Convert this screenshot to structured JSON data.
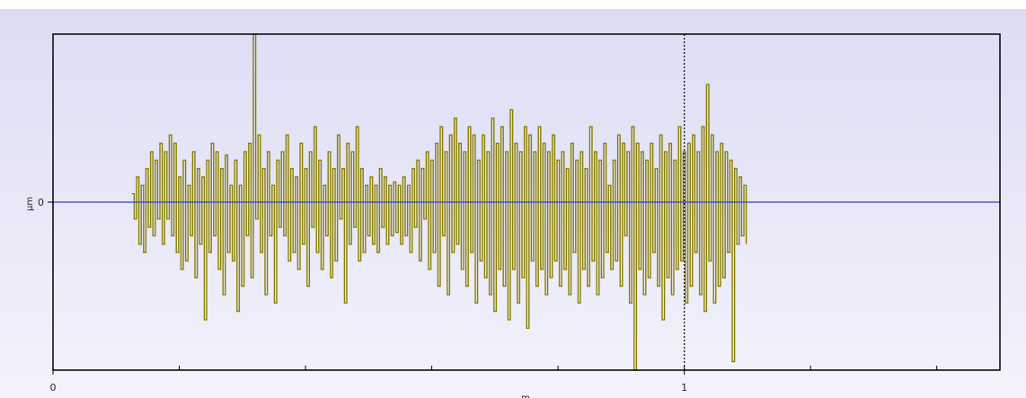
{
  "chart_data": {
    "type": "line",
    "title": "",
    "xlabel": "m",
    "ylabel": "µm",
    "x_ticks": [
      "0",
      "1"
    ],
    "y_ticks": [
      "0"
    ],
    "xlim": [
      0,
      1.5
    ],
    "ylim": [
      -1,
      1
    ],
    "grid": false,
    "cursor_x": 1,
    "baseline_y": 0,
    "colors": {
      "series": "#8a7f00",
      "baseline": "#3344bb",
      "cursor": "#000000",
      "background_top": "#dcdcf4",
      "background_bottom": "#f3f3fc",
      "frame": "#000000"
    },
    "series": [
      {
        "x_start": 0.125,
        "x_step": 0.0037,
        "values": [
          0.05,
          -0.1,
          0.15,
          -0.25,
          0.1,
          -0.3,
          0.2,
          -0.15,
          0.3,
          -0.2,
          0.25,
          -0.1,
          0.35,
          -0.25,
          0.3,
          -0.1,
          0.4,
          -0.2,
          0.35,
          -0.3,
          0.15,
          -0.4,
          0.25,
          -0.35,
          0.1,
          -0.2,
          0.3,
          -0.45,
          0.2,
          -0.25,
          0.15,
          -0.7,
          0.25,
          -0.3,
          0.35,
          -0.2,
          0.3,
          -0.4,
          0.2,
          -0.55,
          0.28,
          -0.3,
          0.1,
          -0.35,
          0.25,
          -0.65,
          0.1,
          -0.5,
          0.3,
          -0.2,
          0.35,
          -0.45,
          1.0,
          -0.1,
          0.4,
          -0.3,
          0.2,
          -0.55,
          0.3,
          -0.2,
          0.1,
          -0.6,
          0.25,
          -0.15,
          0.3,
          -0.2,
          0.4,
          -0.35,
          0.2,
          -0.3,
          0.15,
          -0.4,
          0.35,
          -0.25,
          0.2,
          -0.5,
          0.3,
          -0.15,
          0.45,
          -0.3,
          0.25,
          -0.4,
          0.1,
          -0.2,
          0.3,
          -0.45,
          0.2,
          -0.35,
          0.4,
          -0.1,
          0.2,
          -0.6,
          0.35,
          -0.25,
          0.3,
          -0.15,
          0.45,
          -0.35,
          0.2,
          -0.3,
          0.1,
          -0.2,
          0.15,
          -0.25,
          0.1,
          -0.3,
          0.2,
          -0.15,
          0.15,
          -0.25,
          0.1,
          -0.2,
          0.12,
          -0.18,
          0.1,
          -0.25,
          0.15,
          -0.2,
          0.1,
          -0.3,
          0.2,
          -0.15,
          0.25,
          -0.35,
          0.2,
          -0.1,
          0.3,
          -0.4,
          0.25,
          -0.3,
          0.35,
          -0.5,
          0.45,
          -0.2,
          0.3,
          -0.55,
          0.4,
          -0.3,
          0.5,
          -0.25,
          0.35,
          -0.4,
          0.3,
          -0.5,
          0.45,
          -0.3,
          0.4,
          -0.6,
          0.25,
          -0.35,
          0.4,
          -0.45,
          0.3,
          -0.55,
          0.5,
          -0.65,
          0.35,
          -0.4,
          0.45,
          -0.5,
          0.3,
          -0.7,
          0.55,
          -0.4,
          0.35,
          -0.6,
          0.3,
          -0.45,
          0.45,
          -0.75,
          0.4,
          -0.35,
          0.3,
          -0.5,
          0.45,
          -0.4,
          0.35,
          -0.55,
          0.3,
          -0.45,
          0.4,
          -0.35,
          0.25,
          -0.5,
          0.3,
          -0.4,
          0.2,
          -0.55,
          0.35,
          -0.3,
          0.25,
          -0.6,
          0.3,
          -0.4,
          0.2,
          -0.5,
          0.45,
          -0.35,
          0.3,
          -0.55,
          0.25,
          -0.45,
          0.35,
          -0.3,
          0.1,
          -0.4,
          0.25,
          -0.35,
          0.4,
          -0.5,
          0.35,
          -0.2,
          0.3,
          -0.6,
          0.45,
          -1.0,
          0.35,
          -0.4,
          0.3,
          -0.55,
          0.25,
          -0.45,
          0.35,
          -0.3,
          0.2,
          -0.5,
          0.4,
          -0.7,
          0.3,
          -0.45,
          0.35,
          -0.55,
          0.25,
          -0.4,
          0.45,
          -0.35,
          0.3,
          -0.6,
          0.35,
          -0.5,
          0.4,
          -0.3,
          0.3,
          -0.55,
          0.45,
          -0.65,
          0.7,
          -0.35,
          0.4,
          -0.6,
          0.3,
          -0.5,
          0.35,
          -0.45,
          0.3,
          -0.3,
          0.25,
          -0.95,
          0.2,
          -0.25,
          0.15,
          -0.2,
          0.1,
          -0.25
        ]
      }
    ]
  }
}
